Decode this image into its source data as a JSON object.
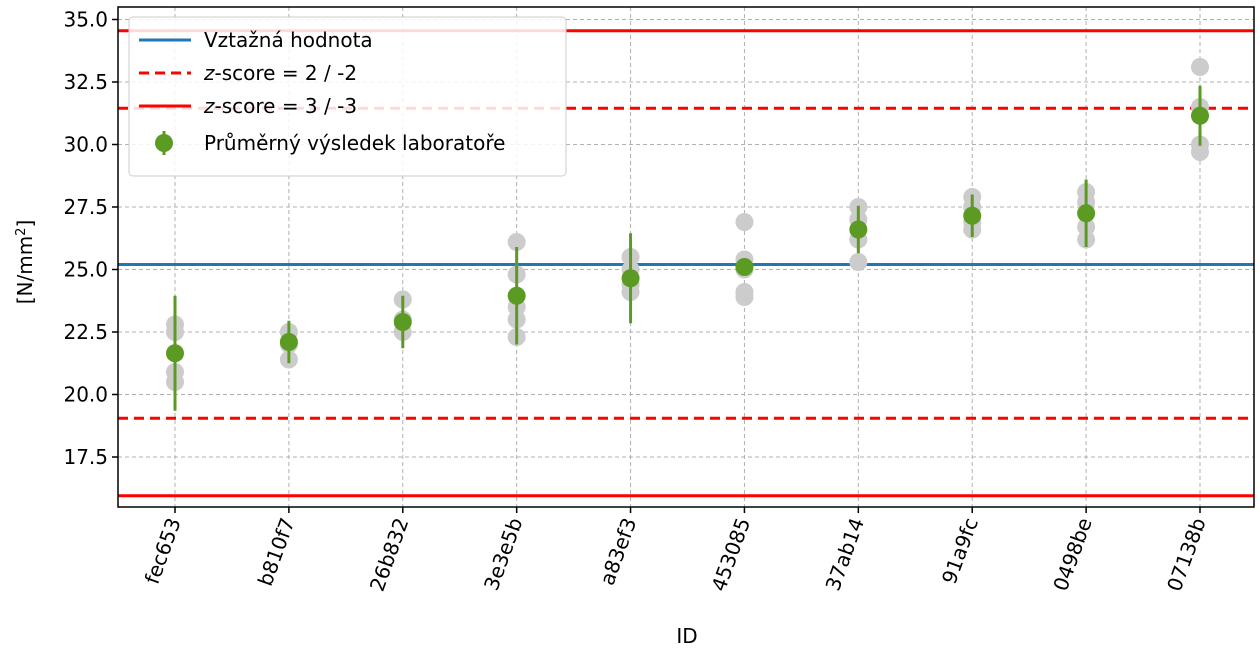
{
  "chart_data": {
    "type": "scatter",
    "xlabel": "ID",
    "ylabel": "[N/mm²]",
    "ylim": [
      15.5,
      35.5
    ],
    "yticks": [
      17.5,
      20.0,
      22.5,
      25.0,
      27.5,
      30.0,
      32.5,
      35.0
    ],
    "ytick_labels": [
      "17.5",
      "20.0",
      "22.5",
      "25.0",
      "27.5",
      "30.0",
      "32.5",
      "35.0"
    ],
    "grid": true,
    "legend_position": "top-left",
    "categories": [
      "fec653",
      "b810f7",
      "26b832",
      "3e3e5b",
      "a83ef3",
      "453085",
      "37ab14",
      "91a9fc",
      "0498be",
      "07138b"
    ],
    "reference_value": 25.2,
    "zscore2_lines": [
      19.05,
      31.45
    ],
    "zscore3_lines": [
      15.95,
      34.55
    ],
    "means": [
      21.65,
      22.1,
      22.9,
      23.95,
      24.65,
      25.1,
      26.6,
      27.15,
      27.25,
      31.15
    ],
    "errors": [
      2.3,
      0.85,
      1.05,
      1.95,
      1.8,
      0.25,
      0.95,
      0.85,
      1.35,
      1.2
    ],
    "individual_results": [
      [
        22.8,
        22.5,
        20.9,
        20.5
      ],
      [
        22.5,
        22.0,
        21.4
      ],
      [
        23.8,
        23.0,
        22.5
      ],
      [
        26.1,
        24.8,
        23.5,
        23.0,
        22.3
      ],
      [
        25.5,
        25.0,
        24.4,
        24.1
      ],
      [
        26.9,
        25.4,
        25.0,
        24.1,
        23.9
      ],
      [
        27.5,
        27.0,
        26.2,
        25.3
      ],
      [
        27.9,
        27.5,
        26.9,
        26.6
      ],
      [
        28.1,
        27.7,
        26.7,
        26.2
      ],
      [
        33.1,
        31.5,
        30.0,
        29.7
      ]
    ],
    "legend": [
      {
        "label": "Vztažná hodnota"
      },
      {
        "label_italic": "z",
        "label": "-score = 2 / -2"
      },
      {
        "label_italic": "z",
        "label": "-score = 3 / -3"
      },
      {
        "label": "Průměrný výsledek laboratoře"
      }
    ],
    "colors": {
      "reference": "#1f77b4",
      "zscore": "#ff0000",
      "mean": "#5b9a23",
      "individual": "#cccccc",
      "grid": "#b0b0b0"
    }
  }
}
